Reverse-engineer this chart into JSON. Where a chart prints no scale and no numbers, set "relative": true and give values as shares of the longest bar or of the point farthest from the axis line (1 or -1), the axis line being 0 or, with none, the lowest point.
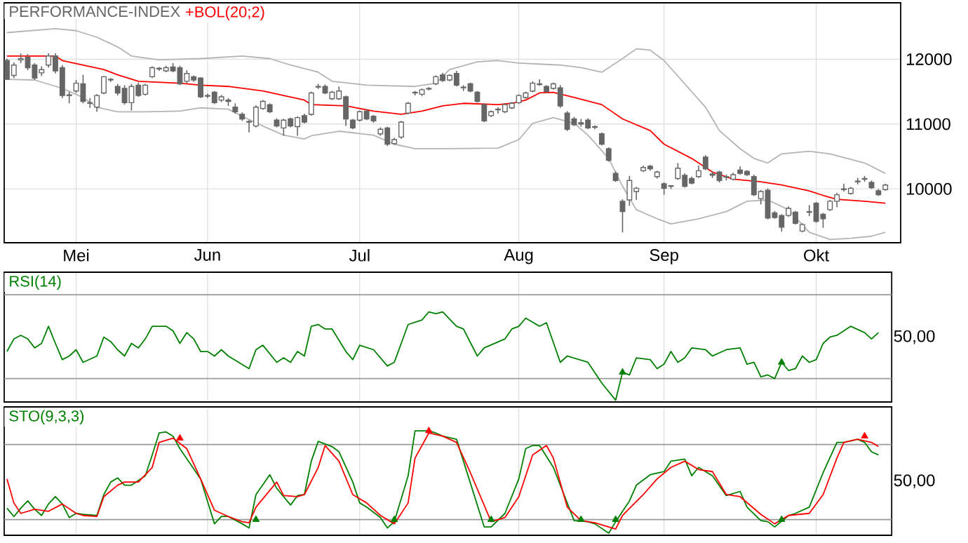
{
  "chart_data": [
    {
      "type": "candlestick",
      "title": "PERFORMANCE-INDEX",
      "color": "#666666",
      "grid": true,
      "categories": [
        null,
        null,
        null,
        null,
        null,
        null,
        null,
        null,
        null,
        null,
        "Mei",
        null,
        null,
        null,
        null,
        null,
        null,
        null,
        null,
        null,
        null,
        null,
        null,
        null,
        null,
        null,
        null,
        null,
        null,
        "Jun",
        null,
        null,
        null,
        null,
        null,
        null,
        null,
        null,
        null,
        null,
        null,
        null,
        null,
        null,
        null,
        null,
        null,
        null,
        null,
        null,
        null,
        "Jul",
        null,
        null,
        null,
        null,
        null,
        null,
        null,
        null,
        null,
        null,
        null,
        null,
        null,
        null,
        null,
        null,
        null,
        null,
        null,
        null,
        null,
        null,
        "Aug",
        null,
        null,
        null,
        null,
        null,
        null,
        null,
        null,
        null,
        null,
        null,
        null,
        null,
        null,
        null,
        null,
        null,
        null,
        null,
        null,
        "Sep",
        null,
        null,
        null,
        null,
        null,
        null,
        null,
        null,
        null,
        null,
        null,
        null,
        null,
        null,
        null,
        null,
        null,
        null,
        null,
        null,
        null,
        "Okt",
        null,
        null,
        null,
        null,
        null,
        null,
        null,
        null,
        null,
        null
      ],
      "ohlc": [
        [
          11980,
          12010,
          11680,
          11690
        ],
        [
          11750,
          11950,
          11710,
          11910
        ],
        [
          11990,
          12090,
          11940,
          12010
        ],
        [
          12030,
          12080,
          11830,
          11870
        ],
        [
          11910,
          11940,
          11680,
          11710
        ],
        [
          11790,
          11890,
          11740,
          11840
        ],
        [
          11910,
          12090,
          11870,
          12050
        ],
        [
          12050,
          12090,
          11780,
          11820
        ],
        [
          11870,
          11910,
          11400,
          11440
        ],
        [
          11450,
          11500,
          11320,
          11440
        ],
        [
          11510,
          11680,
          11480,
          11630
        ],
        [
          11620,
          11760,
          11320,
          11350
        ],
        [
          11330,
          11400,
          11250,
          11320
        ],
        [
          11260,
          11460,
          11190,
          11440
        ],
        [
          11480,
          11740,
          11460,
          11730
        ],
        [
          11680,
          11710,
          11650,
          11690
        ],
        [
          11580,
          11620,
          11440,
          11480
        ],
        [
          11550,
          11600,
          11300,
          11330
        ],
        [
          11330,
          11620,
          11210,
          11580
        ],
        [
          11600,
          11640,
          11420,
          11440
        ],
        [
          11460,
          11620,
          11440,
          11600
        ],
        [
          11730,
          11890,
          11710,
          11870
        ],
        [
          11850,
          11880,
          11820,
          11860
        ],
        [
          11820,
          11900,
          11800,
          11870
        ],
        [
          11880,
          11940,
          11800,
          11820
        ],
        [
          11870,
          11900,
          11600,
          11620
        ],
        [
          11660,
          11830,
          11630,
          11780
        ],
        [
          11730,
          11750,
          11650,
          11680
        ],
        [
          11710,
          11720,
          11400,
          11420
        ],
        [
          11440,
          11470,
          11400,
          11430
        ],
        [
          11490,
          11510,
          11310,
          11330
        ],
        [
          11370,
          11450,
          11340,
          11420
        ],
        [
          11370,
          11400,
          11280,
          11350
        ],
        [
          11260,
          11320,
          11160,
          11190
        ],
        [
          11150,
          11180,
          11050,
          11080
        ],
        [
          11040,
          11060,
          10870,
          11030
        ],
        [
          10970,
          11290,
          10950,
          11260
        ],
        [
          11240,
          11370,
          11220,
          11350
        ],
        [
          11300,
          11320,
          11170,
          11190
        ],
        [
          11060,
          11090,
          10950,
          10970
        ],
        [
          10940,
          11080,
          10820,
          11060
        ],
        [
          11080,
          11100,
          10950,
          10970
        ],
        [
          10960,
          11120,
          10820,
          11100
        ],
        [
          11130,
          11160,
          11010,
          11030
        ],
        [
          11150,
          11500,
          11130,
          11480
        ],
        [
          11570,
          11620,
          11540,
          11580
        ],
        [
          11580,
          11610,
          11460,
          11480
        ],
        [
          11390,
          11510,
          11370,
          11490
        ],
        [
          11390,
          11580,
          11370,
          11510
        ],
        [
          11420,
          11440,
          10970,
          11080
        ],
        [
          11060,
          11080,
          10920,
          10940
        ],
        [
          11060,
          11210,
          11040,
          11190
        ],
        [
          11200,
          11230,
          11060,
          11080
        ],
        [
          11120,
          11140,
          11020,
          11050
        ],
        [
          10850,
          10950,
          10820,
          10920
        ],
        [
          10940,
          10960,
          10660,
          10690
        ],
        [
          10700,
          10790,
          10680,
          10760
        ],
        [
          10800,
          11050,
          10770,
          11030
        ],
        [
          11170,
          11340,
          11150,
          11320
        ],
        [
          11490,
          11510,
          11440,
          11480
        ],
        [
          11460,
          11550,
          11430,
          11530
        ],
        [
          11540,
          11570,
          11520,
          11550
        ],
        [
          11620,
          11750,
          11600,
          11730
        ],
        [
          11760,
          11790,
          11650,
          11670
        ],
        [
          11680,
          11770,
          11660,
          11750
        ],
        [
          11780,
          11820,
          11580,
          11600
        ],
        [
          11570,
          11600,
          11510,
          11560
        ],
        [
          11620,
          11640,
          11490,
          11510
        ],
        [
          11490,
          11510,
          11330,
          11350
        ],
        [
          11300,
          11320,
          11030,
          11050
        ],
        [
          11130,
          11210,
          11110,
          11190
        ],
        [
          11230,
          11260,
          11160,
          11220
        ],
        [
          11190,
          11320,
          11170,
          11300
        ],
        [
          11250,
          11340,
          11230,
          11320
        ],
        [
          11330,
          11460,
          11310,
          11440
        ],
        [
          11410,
          11500,
          11390,
          11480
        ],
        [
          11510,
          11660,
          11490,
          11630
        ],
        [
          11610,
          11690,
          11590,
          11620
        ],
        [
          11580,
          11600,
          11480,
          11500
        ],
        [
          11550,
          11640,
          11530,
          11620
        ],
        [
          11560,
          11600,
          11250,
          11280
        ],
        [
          11170,
          11200,
          10890,
          10920
        ],
        [
          11080,
          11110,
          10970,
          10990
        ],
        [
          11020,
          11080,
          10960,
          11000
        ],
        [
          11060,
          11090,
          10920,
          10940
        ],
        [
          10960,
          10980,
          10920,
          10950
        ],
        [
          10850,
          10870,
          10670,
          10690
        ],
        [
          10620,
          10640,
          10420,
          10440
        ],
        [
          10240,
          10270,
          10110,
          10130
        ],
        [
          9810,
          9840,
          9330,
          9650
        ],
        [
          9830,
          10200,
          9740,
          10130
        ],
        [
          9960,
          10030,
          9830,
          10010
        ],
        [
          10280,
          10360,
          10260,
          10330
        ],
        [
          10350,
          10370,
          10280,
          10310
        ],
        [
          10190,
          10280,
          10160,
          10260
        ],
        [
          10080,
          10100,
          9910,
          10010
        ],
        [
          10040,
          10060,
          10000,
          10050
        ],
        [
          10160,
          10400,
          10140,
          10320
        ],
        [
          10210,
          10240,
          10020,
          10040
        ],
        [
          10160,
          10190,
          10070,
          10090
        ],
        [
          10190,
          10360,
          10170,
          10280
        ],
        [
          10490,
          10520,
          10290,
          10310
        ],
        [
          10230,
          10270,
          10170,
          10210
        ],
        [
          10260,
          10280,
          10100,
          10130
        ],
        [
          10190,
          10220,
          10130,
          10180
        ],
        [
          10150,
          10250,
          10130,
          10220
        ],
        [
          10290,
          10350,
          10220,
          10240
        ],
        [
          10270,
          10290,
          10200,
          10220
        ],
        [
          10190,
          10220,
          9890,
          9910
        ],
        [
          9850,
          9980,
          9760,
          9960
        ],
        [
          9980,
          10010,
          9530,
          9550
        ],
        [
          9630,
          9660,
          9540,
          9560
        ],
        [
          9590,
          9610,
          9340,
          9410
        ],
        [
          9590,
          9730,
          9570,
          9700
        ],
        [
          9640,
          9660,
          9450,
          9470
        ],
        [
          9350,
          9470,
          9330,
          9450
        ],
        [
          9640,
          9750,
          9580,
          9650
        ],
        [
          9780,
          9800,
          9480,
          9500
        ],
        [
          9610,
          9630,
          9400,
          9540
        ],
        [
          9680,
          9830,
          9660,
          9810
        ],
        [
          9810,
          9940,
          9720,
          9910
        ],
        [
          10000,
          10080,
          9960,
          9990
        ],
        [
          9930,
          10030,
          9910,
          10010
        ],
        [
          10110,
          10170,
          10070,
          10120
        ],
        [
          10150,
          10200,
          10110,
          10160
        ],
        [
          10100,
          10130,
          10000,
          10020
        ],
        [
          9970,
          10000,
          9890,
          9910
        ],
        [
          9990,
          10080,
          9970,
          10060
        ]
      ],
      "series": [
        {
          "type": "line",
          "name": "+BOL(20;2)",
          "color": "#ff0000",
          "values": [
            12050,
            null,
            null,
            null,
            null,
            null,
            null,
            12050,
            11980,
            null,
            null,
            11910,
            null,
            null,
            11840,
            null,
            11760,
            null,
            null,
            11660,
            null,
            null,
            null,
            null,
            null,
            11630,
            null,
            null,
            11600,
            null,
            null,
            null,
            11580,
            null,
            null,
            null,
            null,
            11510,
            null,
            null,
            11440,
            null,
            null,
            11370,
            11300,
            null,
            null,
            null,
            null,
            11280,
            null,
            null,
            null,
            11200,
            null,
            null,
            null,
            11150,
            null,
            null,
            11200,
            null,
            null,
            11280,
            null,
            null,
            11320,
            null,
            null,
            null,
            null,
            11300,
            null,
            11320,
            null,
            11370,
            null,
            11480,
            null,
            11490,
            null,
            null,
            11410,
            null,
            null,
            null,
            11300,
            null,
            null,
            11080,
            null,
            null,
            null,
            10900,
            null,
            10690,
            null,
            null,
            null,
            10470,
            null,
            null,
            10260,
            null,
            null,
            10150,
            null,
            null,
            null,
            10110,
            null,
            null,
            10060,
            null,
            null,
            null,
            9970,
            null,
            9900,
            null,
            9840,
            null,
            null,
            null,
            9810,
            null,
            null,
            9780
          ]
        },
        {
          "type": "line",
          "color": "#b4b4b4",
          "values": [
            12410,
            null,
            null,
            null,
            null,
            null,
            null,
            12470,
            null,
            null,
            12440,
            null,
            null,
            12340,
            null,
            null,
            12190,
            null,
            12050,
            null,
            null,
            null,
            11990,
            null,
            null,
            null,
            null,
            null,
            12010,
            null,
            null,
            null,
            null,
            null,
            12050,
            null,
            null,
            null,
            12010,
            null,
            null,
            11910,
            null,
            null,
            null,
            11800,
            null,
            11660,
            null,
            null,
            null,
            null,
            11600,
            null,
            null,
            null,
            null,
            null,
            null,
            11580,
            null,
            null,
            11630,
            null,
            11840,
            null,
            null,
            null,
            11960,
            null,
            null,
            11980,
            null,
            null,
            11940,
            null,
            null,
            null,
            null,
            null,
            11910,
            null,
            null,
            11870,
            null,
            null,
            11800,
            null,
            null,
            12010,
            null,
            12160,
            null,
            12140,
            null,
            11980,
            null,
            null,
            11620,
            null,
            null,
            11260,
            null,
            10900,
            null,
            null,
            10620,
            null,
            10470,
            null,
            10400,
            null,
            10540,
            null,
            null,
            null,
            10580,
            null,
            null,
            10540,
            null,
            null,
            null,
            null,
            10400,
            null,
            null,
            10240
          ]
        },
        {
          "type": "line",
          "color": "#b4b4b4",
          "values": [
            11690,
            null,
            null,
            null,
            11680,
            null,
            null,
            null,
            11550,
            null,
            null,
            11410,
            null,
            11260,
            null,
            null,
            11190,
            null,
            null,
            null,
            11190,
            null,
            null,
            null,
            null,
            11200,
            null,
            null,
            11250,
            null,
            null,
            null,
            11230,
            null,
            11120,
            null,
            null,
            10970,
            null,
            null,
            10830,
            null,
            null,
            10770,
            10820,
            null,
            null,
            null,
            10890,
            null,
            null,
            null,
            null,
            10830,
            null,
            null,
            10690,
            null,
            null,
            10620,
            null,
            null,
            null,
            null,
            10620,
            null,
            null,
            null,
            null,
            null,
            null,
            10630,
            null,
            null,
            10760,
            null,
            11010,
            null,
            null,
            11100,
            null,
            null,
            11010,
            null,
            10830,
            null,
            null,
            10470,
            null,
            10040,
            null,
            9680,
            null,
            null,
            9540,
            null,
            9460,
            null,
            null,
            null,
            9540,
            null,
            null,
            null,
            9650,
            null,
            null,
            9810,
            null,
            null,
            9830,
            null,
            null,
            9680,
            null,
            null,
            9330,
            null,
            null,
            9220,
            null,
            null,
            9240,
            null,
            null,
            9270,
            null,
            9330
          ]
        }
      ],
      "ylim": [
        9170,
        12870
      ],
      "yticks": [
        10000,
        11000,
        12000
      ]
    },
    {
      "type": "line",
      "relative": true,
      "grid": "x",
      "tick_labels": false,
      "categories": [
        null,
        null,
        null,
        null,
        null,
        null,
        null,
        null,
        null,
        null,
        null,
        null,
        null,
        null,
        null,
        null,
        null,
        null,
        null,
        null,
        null,
        null,
        null,
        null,
        null,
        null,
        null,
        null,
        null,
        null,
        null,
        null,
        null,
        null,
        null,
        null,
        null,
        null,
        null,
        null,
        null,
        null,
        null,
        null,
        null,
        null,
        null,
        null,
        null,
        null,
        null,
        null,
        null,
        null,
        null,
        null,
        null,
        null,
        null,
        null,
        null,
        null,
        null,
        null,
        null,
        null,
        null,
        null,
        null,
        null,
        null,
        null,
        null,
        null,
        null,
        null,
        null,
        null,
        null,
        null,
        null,
        null,
        null,
        null,
        null,
        null,
        null,
        null,
        null,
        null,
        null,
        null,
        null,
        null,
        null,
        null,
        null,
        null,
        null,
        null,
        null,
        null,
        null,
        null,
        null,
        null,
        null,
        null,
        null,
        null,
        null,
        null,
        null,
        null,
        null,
        null,
        null,
        null,
        null,
        null,
        null,
        null,
        null,
        null,
        null,
        null,
        null,
        null
      ],
      "series": [
        {
          "name": "RSI(14)",
          "color": "#008000",
          "values": [
            0.56,
            0.7,
            0.74,
            0.7,
            0.6,
            0.65,
            0.84,
            0.65,
            0.47,
            0.51,
            0.58,
            0.44,
            null,
            0.51,
            0.72,
            0.67,
            0.58,
            0.51,
            0.65,
            0.6,
            0.7,
            0.84,
            null,
            0.84,
            0.79,
            0.65,
            0.77,
            0.7,
            0.56,
            0.56,
            0.51,
            0.58,
            0.51,
            null,
            null,
            0.37,
            0.58,
            0.63,
            null,
            0.44,
            0.49,
            0.44,
            0.56,
            0.51,
            0.84,
            0.86,
            0.81,
            0.81,
            null,
            0.56,
            0.47,
            0.63,
            null,
            0.58,
            null,
            0.4,
            0.44,
            0.65,
            0.86,
            null,
            0.91,
            1,
            0.98,
            1,
            null,
            0.84,
            0.81,
            null,
            0.51,
            0.6,
            null,
            null,
            0.7,
            0.81,
            0.84,
            0.93,
            null,
            0.84,
            0.88,
            null,
            0.44,
            0.51,
            null,
            null,
            0.44,
            null,
            0.21,
            null,
            0.02,
            0.33,
            0.3,
            0.49,
            null,
            0.47,
            0.37,
            0.42,
            0.56,
            0.44,
            0.49,
            0.6,
            null,
            0.58,
            0.51,
            null,
            0.58,
            null,
            0.6,
            0.42,
            0.44,
            0.28,
            0.3,
            0.26,
            0.44,
            0.35,
            0.37,
            0.51,
            0.44,
            0.47,
            0.65,
            0.72,
            0.74,
            null,
            0.84,
            null,
            0.77,
            0.7,
            0.77,
            null
          ]
        },
        {
          "type": "scatter",
          "marker": "triangle",
          "color": "#008000",
          "values": [
            null,
            null,
            null,
            null,
            null,
            null,
            null,
            null,
            null,
            null,
            null,
            null,
            null,
            null,
            null,
            null,
            null,
            null,
            null,
            null,
            null,
            null,
            null,
            null,
            null,
            null,
            null,
            null,
            null,
            null,
            null,
            null,
            null,
            null,
            null,
            null,
            null,
            null,
            null,
            null,
            null,
            null,
            null,
            null,
            null,
            null,
            null,
            null,
            null,
            null,
            null,
            null,
            null,
            null,
            null,
            null,
            null,
            null,
            null,
            null,
            null,
            null,
            null,
            null,
            null,
            null,
            null,
            null,
            null,
            null,
            null,
            null,
            null,
            null,
            null,
            null,
            null,
            null,
            null,
            null,
            null,
            null,
            null,
            null,
            null,
            null,
            null,
            null,
            null,
            0.33,
            null,
            null,
            null,
            null,
            null,
            null,
            null,
            null,
            null,
            null,
            null,
            null,
            null,
            null,
            null,
            null,
            null,
            null,
            null,
            null,
            null,
            null,
            0.44,
            null,
            null,
            null,
            null,
            null,
            null,
            null,
            null,
            null,
            null,
            null,
            null,
            null,
            null,
            null
          ]
        }
      ],
      "ref_lines": [
        {
          "axis": "y",
          "value": 1.19,
          "color": "#999999"
        },
        {
          "axis": "y",
          "value": 0.26,
          "color": "#999999"
        }
      ],
      "annotations": [
        "50,00"
      ]
    },
    {
      "type": "line",
      "relative": true,
      "grid": "x",
      "tick_labels": false,
      "categories": [
        null,
        null,
        null,
        null,
        null,
        null,
        null,
        null,
        null,
        null,
        null,
        null,
        null,
        null,
        null,
        null,
        null,
        null,
        null,
        null,
        null,
        null,
        null,
        null,
        null,
        null,
        null,
        null,
        null,
        null,
        null,
        null,
        null,
        null,
        null,
        null,
        null,
        null,
        null,
        null,
        null,
        null,
        null,
        null,
        null,
        null,
        null,
        null,
        null,
        null,
        null,
        null,
        null,
        null,
        null,
        null,
        null,
        null,
        null,
        null,
        null,
        null,
        null,
        null,
        null,
        null,
        null,
        null,
        null,
        null,
        null,
        null,
        null,
        null,
        null,
        null,
        null,
        null,
        null,
        null,
        null,
        null,
        null,
        null,
        null,
        null,
        null,
        null,
        null,
        null,
        null,
        null,
        null,
        null,
        null,
        null,
        null,
        null,
        null,
        null,
        null,
        null,
        null,
        null,
        null,
        null,
        null,
        null,
        null,
        null,
        null,
        null,
        null,
        null,
        null,
        null,
        null,
        null,
        null,
        null,
        null,
        null,
        null,
        null,
        null,
        null,
        null,
        null
      ],
      "series": [
        {
          "name": "STO(9,3,3)",
          "color": "#008000",
          "values": [
            0.26,
            0.18,
            0.26,
            0.33,
            0.25,
            0.19,
            0.3,
            0.37,
            0.3,
            0.17,
            0.21,
            0.2,
            null,
            0.19,
            0.39,
            0.51,
            0.55,
            0.48,
            0.48,
            null,
            0.57,
            0.77,
            0.98,
            0.99,
            0.95,
            0.83,
            null,
            null,
            0.54,
            null,
            0.11,
            0.18,
            0.18,
            null,
            0.11,
            0.07,
            0.39,
            null,
            0.58,
            0.45,
            null,
            0.29,
            0.38,
            0.39,
            0.71,
            0.9,
            null,
            0.85,
            0.8,
            null,
            0.51,
            0.31,
            0.27,
            null,
            0.17,
            0.07,
            0.13,
            null,
            0.57,
            1,
            null,
            1,
            0.98,
            0.95,
            null,
            0.92,
            0.71,
            null,
            null,
            0.08,
            0.08,
            null,
            0.21,
            null,
            0.54,
            0.83,
            0.86,
            0.86,
            null,
            0.65,
            null,
            0.31,
            0.14,
            null,
            0.13,
            0.11,
            null,
            0.02,
            0.13,
            null,
            0.33,
            0.48,
            null,
            0.58,
            null,
            0.61,
            0.71,
            null,
            0.73,
            0.57,
            0.65,
            null,
            0.57,
            null,
            0.38,
            null,
            0.42,
            0.27,
            null,
            0.14,
            0.13,
            0.08,
            null,
            0.19,
            0.21,
            null,
            0.27,
            null,
            0.6,
            null,
            0.89,
            0.89,
            null,
            0.92,
            0.89,
            0.8,
            0.77,
            null
          ]
        },
        {
          "color": "#ff0000",
          "values": [
            0.54,
            0.31,
            0.21,
            null,
            0.25,
            null,
            0.23,
            null,
            0.3,
            null,
            0.21,
            0.19,
            null,
            0.18,
            0.37,
            null,
            0.48,
            0.51,
            null,
            0.51,
            null,
            0.65,
            0.89,
            null,
            0.93,
            null,
            0.83,
            null,
            0.54,
            null,
            0.24,
            null,
            0.18,
            null,
            0.13,
            0.12,
            0.27,
            null,
            null,
            0.51,
            0.38,
            null,
            0.37,
            0.39,
            null,
            0.65,
            0.86,
            null,
            0.71,
            null,
            0.39,
            null,
            0.31,
            null,
            0.19,
            null,
            0.11,
            null,
            0.31,
            0.74,
            null,
            0.98,
            null,
            0.95,
            null,
            0.89,
            null,
            0.6,
            null,
            null,
            0.13,
            null,
            0.17,
            null,
            0.37,
            null,
            0.77,
            null,
            0.86,
            0.74,
            null,
            0.27,
            null,
            0.14,
            null,
            0.12,
            null,
            null,
            0.06,
            0.19,
            null,
            null,
            0.39,
            null,
            0.54,
            null,
            0.65,
            null,
            0.71,
            null,
            0.63,
            null,
            0.61,
            null,
            0.39,
            null,
            0.37,
            null,
            null,
            0.2,
            null,
            0.11,
            null,
            0.19,
            null,
            null,
            0.21,
            null,
            0.39,
            null,
            0.74,
            0.89,
            null,
            0.92,
            null,
            0.89,
            0.85,
            null
          ]
        },
        {
          "type": "scatter",
          "marker": "triangle",
          "color": "#ff0000",
          "values": [
            null,
            null,
            null,
            null,
            null,
            null,
            null,
            null,
            null,
            null,
            null,
            null,
            null,
            null,
            null,
            null,
            null,
            null,
            null,
            null,
            null,
            null,
            null,
            null,
            null,
            0.93,
            null,
            null,
            null,
            null,
            null,
            null,
            null,
            null,
            null,
            null,
            null,
            null,
            null,
            null,
            null,
            null,
            null,
            null,
            null,
            null,
            null,
            null,
            null,
            null,
            null,
            null,
            null,
            null,
            null,
            null,
            null,
            null,
            null,
            null,
            null,
            1,
            null,
            null,
            null,
            null,
            null,
            null,
            null,
            null,
            null,
            null,
            null,
            null,
            null,
            null,
            null,
            null,
            null,
            null,
            null,
            null,
            null,
            null,
            null,
            null,
            null,
            null,
            null,
            null,
            null,
            null,
            null,
            null,
            null,
            null,
            null,
            null,
            null,
            null,
            null,
            null,
            null,
            null,
            null,
            null,
            null,
            null,
            null,
            null,
            null,
            null,
            null,
            null,
            null,
            null,
            null,
            null,
            null,
            null,
            null,
            null,
            null,
            null,
            0.95,
            null,
            null,
            null
          ]
        },
        {
          "type": "scatter",
          "marker": "triangle",
          "color": "#008000",
          "values": [
            null,
            null,
            null,
            null,
            null,
            null,
            null,
            null,
            null,
            null,
            null,
            null,
            null,
            null,
            null,
            null,
            null,
            null,
            null,
            null,
            null,
            null,
            null,
            null,
            null,
            null,
            null,
            null,
            null,
            null,
            null,
            null,
            null,
            null,
            null,
            null,
            0.15,
            null,
            null,
            null,
            null,
            null,
            null,
            null,
            null,
            null,
            null,
            null,
            null,
            null,
            null,
            null,
            null,
            null,
            null,
            null,
            0.15,
            null,
            null,
            null,
            null,
            null,
            null,
            null,
            null,
            null,
            null,
            null,
            null,
            null,
            0.15,
            null,
            null,
            null,
            null,
            null,
            null,
            null,
            null,
            null,
            null,
            null,
            null,
            0.15,
            null,
            null,
            null,
            null,
            0.15,
            null,
            null,
            null,
            null,
            null,
            null,
            null,
            null,
            null,
            null,
            null,
            null,
            null,
            null,
            null,
            null,
            null,
            null,
            null,
            null,
            null,
            null,
            null,
            0.15,
            null,
            null,
            null,
            null,
            null,
            null,
            null,
            null,
            null,
            null,
            null,
            null,
            null,
            null,
            null
          ]
        }
      ],
      "ref_lines": [
        {
          "axis": "y",
          "value": 0.87,
          "color": "#999999"
        },
        {
          "axis": "y",
          "value": 0.15,
          "color": "#999999"
        }
      ],
      "annotations": [
        "50,00"
      ]
    }
  ]
}
